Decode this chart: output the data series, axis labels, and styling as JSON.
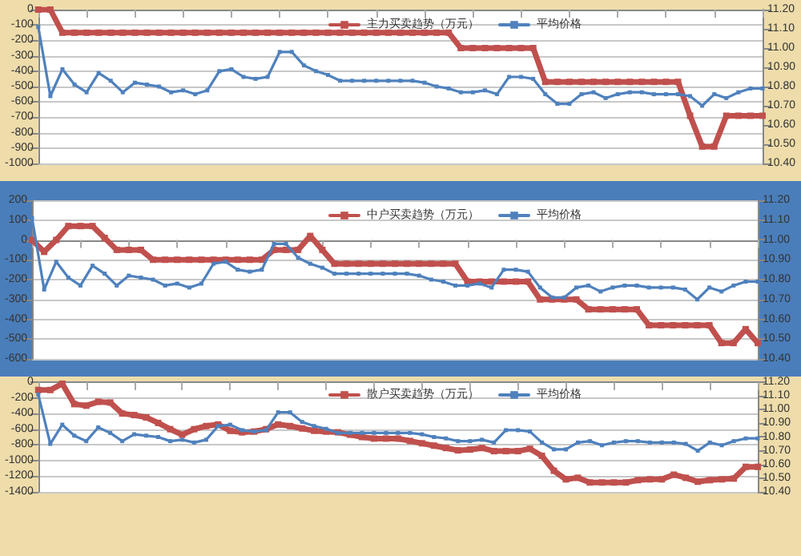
{
  "chart_data": [
    {
      "type": "line",
      "categories": [
        null,
        null,
        null,
        null,
        null,
        null,
        null,
        null,
        null,
        null,
        null,
        null,
        null,
        null,
        null,
        null,
        null,
        null,
        null,
        null,
        null,
        null,
        null,
        null,
        null,
        null,
        null,
        null,
        null,
        null,
        null,
        null,
        null,
        null,
        null,
        null,
        null,
        null,
        null,
        null,
        null,
        null,
        null,
        null,
        null,
        null,
        null,
        null,
        null,
        null,
        null,
        null,
        null,
        null,
        null,
        null,
        null,
        null,
        null,
        null,
        null
      ],
      "series": [
        {
          "name": "主力买卖趋势（万元）",
          "color": "#c0504d",
          "values": [
            0,
            0,
            -150,
            -150,
            -150,
            -150,
            -150,
            -150,
            -150,
            -150,
            -150,
            -150,
            -150,
            -150,
            -150,
            -150,
            -150,
            -150,
            -150,
            -150,
            -150,
            -150,
            -150,
            -150,
            -150,
            -150,
            -150,
            -150,
            -150,
            -150,
            -150,
            -150,
            -150,
            -150,
            -150,
            -250,
            -250,
            -250,
            -250,
            -250,
            -250,
            -250,
            -470,
            -470,
            -470,
            -470,
            -470,
            -470,
            -470,
            -470,
            -470,
            -470,
            -470,
            -470,
            -690,
            -890,
            -890,
            -690,
            -690,
            -690,
            -690
          ]
        },
        {
          "name": "平均价格",
          "color": "#4f81bd",
          "axis": "y2",
          "values": [
            11.11,
            10.75,
            10.89,
            10.81,
            10.77,
            10.87,
            10.83,
            10.77,
            10.82,
            10.81,
            10.8,
            10.77,
            10.78,
            10.76,
            10.78,
            10.88,
            10.89,
            10.85,
            10.84,
            10.85,
            10.98,
            10.98,
            10.91,
            10.88,
            10.86,
            10.83,
            10.83,
            10.83,
            10.83,
            10.83,
            10.83,
            10.83,
            10.82,
            10.8,
            10.79,
            10.77,
            10.77,
            10.78,
            10.76,
            10.85,
            10.85,
            10.84,
            10.76,
            10.71,
            10.71,
            10.76,
            10.77,
            10.74,
            10.76,
            10.77,
            10.77,
            10.76,
            10.76,
            10.76,
            10.75,
            10.7,
            10.76,
            10.74,
            10.77,
            10.79,
            10.79
          ]
        }
      ],
      "ylim": [
        -1000,
        0
      ],
      "yticks": [
        -1000,
        -900,
        -800,
        -700,
        -600,
        -500,
        -400,
        -300,
        -200,
        -100,
        0
      ],
      "y2lim": [
        10.4,
        11.2
      ],
      "y2ticks": [
        {
          "value": 10.4,
          "label": "10.40"
        },
        {
          "value": 10.5,
          "label": "10.50"
        },
        {
          "value": 10.6,
          "label": "10.60"
        },
        {
          "value": 10.7,
          "label": "10.70"
        },
        {
          "value": 10.8,
          "label": "10.80"
        },
        {
          "value": 10.9,
          "label": "10.90"
        },
        {
          "value": 11.0,
          "label": "11.00"
        },
        {
          "value": 11.1,
          "label": "11.10"
        },
        {
          "value": 11.2,
          "label": "11.20"
        }
      ],
      "grid": "y",
      "legend": "top",
      "marker": "square"
    },
    {
      "type": "line",
      "categories": [
        null,
        null,
        null,
        null,
        null,
        null,
        null,
        null,
        null,
        null,
        null,
        null,
        null,
        null,
        null,
        null,
        null,
        null,
        null,
        null,
        null,
        null,
        null,
        null,
        null,
        null,
        null,
        null,
        null,
        null,
        null,
        null,
        null,
        null,
        null,
        null,
        null,
        null,
        null,
        null,
        null,
        null,
        null,
        null,
        null,
        null,
        null,
        null,
        null,
        null,
        null,
        null,
        null,
        null,
        null,
        null,
        null,
        null,
        null,
        null,
        null
      ],
      "series": [
        {
          "name": "中户买卖趋势（万元）",
          "color": "#c0504d",
          "values": [
            0,
            -60,
            0,
            70,
            70,
            70,
            10,
            -50,
            -50,
            -50,
            -100,
            -100,
            -100,
            -100,
            -100,
            -100,
            -100,
            -100,
            -100,
            -100,
            -50,
            -50,
            -50,
            20,
            -50,
            -120,
            -120,
            -120,
            -120,
            -120,
            -120,
            -120,
            -120,
            -120,
            -120,
            -120,
            -210,
            -210,
            -210,
            -210,
            -210,
            -210,
            -300,
            -300,
            -300,
            -300,
            -350,
            -350,
            -350,
            -350,
            -350,
            -430,
            -430,
            -430,
            -430,
            -430,
            -430,
            -520,
            -520,
            -450,
            -520
          ]
        },
        {
          "name": "平均价格",
          "color": "#4f81bd",
          "axis": "y2",
          "values": [
            11.11,
            10.75,
            10.89,
            10.81,
            10.77,
            10.87,
            10.83,
            10.77,
            10.82,
            10.81,
            10.8,
            10.77,
            10.78,
            10.76,
            10.78,
            10.88,
            10.89,
            10.85,
            10.84,
            10.85,
            10.98,
            10.98,
            10.91,
            10.88,
            10.86,
            10.83,
            10.83,
            10.83,
            10.83,
            10.83,
            10.83,
            10.83,
            10.82,
            10.8,
            10.79,
            10.77,
            10.77,
            10.78,
            10.76,
            10.85,
            10.85,
            10.84,
            10.76,
            10.71,
            10.71,
            10.76,
            10.77,
            10.74,
            10.76,
            10.77,
            10.77,
            10.76,
            10.76,
            10.76,
            10.75,
            10.7,
            10.76,
            10.74,
            10.77,
            10.79,
            10.79
          ]
        }
      ],
      "ylim": [
        -600,
        200
      ],
      "yticks": [
        -600,
        -500,
        -400,
        -300,
        -200,
        -100,
        0,
        100,
        200
      ],
      "y2lim": [
        10.4,
        11.2
      ],
      "y2ticks": [
        {
          "value": 10.4,
          "label": "10.40"
        },
        {
          "value": 10.5,
          "label": "10.50"
        },
        {
          "value": 10.6,
          "label": "10.60"
        },
        {
          "value": 10.7,
          "label": "10.70"
        },
        {
          "value": 10.8,
          "label": "10.80"
        },
        {
          "value": 10.9,
          "label": "10.90"
        },
        {
          "value": 11.0,
          "label": "11.00"
        },
        {
          "value": 11.1,
          "label": "11.10"
        },
        {
          "value": 11.2,
          "label": "11.20"
        }
      ],
      "grid": "y",
      "legend": "top",
      "marker": "square"
    },
    {
      "type": "line",
      "categories": [
        null,
        null,
        null,
        null,
        null,
        null,
        null,
        null,
        null,
        null,
        null,
        null,
        null,
        null,
        null,
        null,
        null,
        null,
        null,
        null,
        null,
        null,
        null,
        null,
        null,
        null,
        null,
        null,
        null,
        null,
        null,
        null,
        null,
        null,
        null,
        null,
        null,
        null,
        null,
        null,
        null,
        null,
        null,
        null,
        null,
        null,
        null,
        null,
        null,
        null,
        null,
        null,
        null,
        null,
        null,
        null,
        null,
        null,
        null,
        null,
        null
      ],
      "series": [
        {
          "name": "散户买卖趋势（万元）",
          "color": "#c0504d",
          "values": [
            -100,
            -100,
            -20,
            -280,
            -300,
            -250,
            -260,
            -400,
            -420,
            -450,
            -520,
            -600,
            -670,
            -600,
            -560,
            -540,
            -620,
            -640,
            -630,
            -600,
            -540,
            -560,
            -590,
            -620,
            -630,
            -640,
            -670,
            -700,
            -720,
            -720,
            -720,
            -750,
            -780,
            -810,
            -840,
            -870,
            -860,
            -840,
            -880,
            -880,
            -880,
            -850,
            -940,
            -1130,
            -1240,
            -1220,
            -1280,
            -1280,
            -1280,
            -1280,
            -1250,
            -1240,
            -1240,
            -1180,
            -1220,
            -1270,
            -1250,
            -1240,
            -1230,
            -1080,
            -1080
          ]
        },
        {
          "name": "平均价格",
          "color": "#4f81bd",
          "axis": "y2",
          "values": [
            11.11,
            10.75,
            10.89,
            10.81,
            10.77,
            10.87,
            10.83,
            10.77,
            10.82,
            10.81,
            10.8,
            10.77,
            10.78,
            10.76,
            10.78,
            10.88,
            10.89,
            10.85,
            10.84,
            10.85,
            10.98,
            10.98,
            10.91,
            10.88,
            10.86,
            10.83,
            10.83,
            10.83,
            10.83,
            10.83,
            10.83,
            10.83,
            10.82,
            10.8,
            10.79,
            10.77,
            10.77,
            10.78,
            10.76,
            10.85,
            10.85,
            10.84,
            10.76,
            10.71,
            10.71,
            10.76,
            10.77,
            10.74,
            10.76,
            10.77,
            10.77,
            10.76,
            10.76,
            10.76,
            10.75,
            10.7,
            10.76,
            10.74,
            10.77,
            10.79,
            10.79
          ]
        }
      ],
      "ylim": [
        -1400,
        0
      ],
      "yticks": [
        -1400,
        -1200,
        -1000,
        -800,
        -600,
        -400,
        -200,
        0
      ],
      "y2lim": [
        10.4,
        11.2
      ],
      "y2ticks": [
        {
          "value": 10.4,
          "label": "10.40"
        },
        {
          "value": 10.5,
          "label": "10.50"
        },
        {
          "value": 10.6,
          "label": "10.60"
        },
        {
          "value": 10.7,
          "label": "10.70"
        },
        {
          "value": 10.8,
          "label": "10.80"
        },
        {
          "value": 10.9,
          "label": "10.90"
        },
        {
          "value": 11.0,
          "label": "11.00"
        },
        {
          "value": 11.1,
          "label": "11.10"
        },
        {
          "value": 11.2,
          "label": "11.20"
        }
      ],
      "grid": "y",
      "legend": "top",
      "marker": "square"
    }
  ]
}
